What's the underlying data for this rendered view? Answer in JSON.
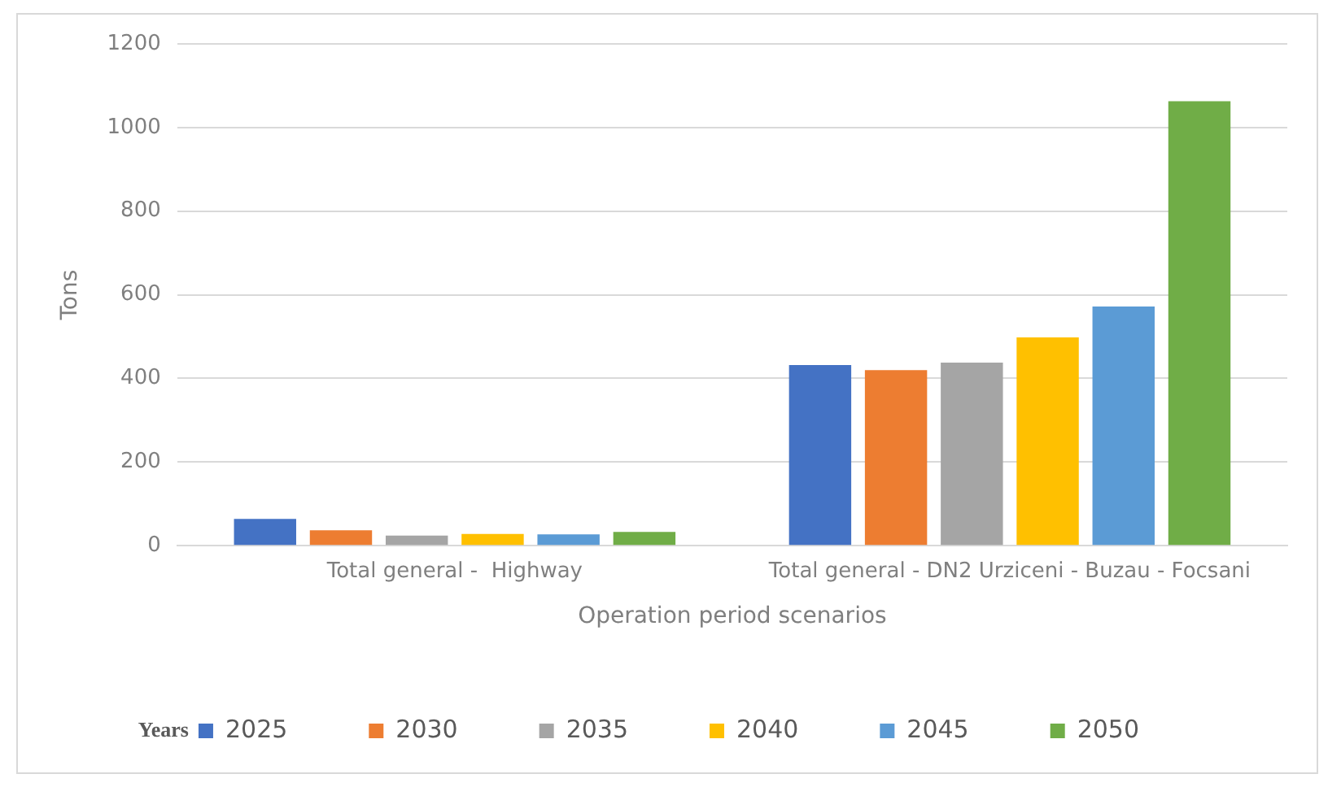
{
  "chart_data": {
    "type": "bar",
    "xlabel": "Operation period scenarios",
    "ylabel": "Tons",
    "legend_title": "Years",
    "legend": "bottom",
    "grid": "y",
    "categories": [
      "Total general -  Highway",
      "Total general - DN2 Urziceni - Buzau - Focsani"
    ],
    "ylim": [
      0,
      1200
    ],
    "yticks": [
      0,
      200,
      400,
      600,
      800,
      1000,
      1200
    ],
    "series": [
      {
        "name": "2025",
        "color": "#4472c4",
        "values": [
          64,
          432
        ]
      },
      {
        "name": "2030",
        "color": "#ed7d31",
        "values": [
          37,
          420
        ]
      },
      {
        "name": "2035",
        "color": "#a5a5a5",
        "values": [
          24,
          438
        ]
      },
      {
        "name": "2040",
        "color": "#ffc000",
        "values": [
          28,
          498
        ]
      },
      {
        "name": "2045",
        "color": "#5b9bd5",
        "values": [
          27,
          572
        ]
      },
      {
        "name": "2050",
        "color": "#70ad47",
        "values": [
          33,
          1063
        ]
      }
    ]
  }
}
